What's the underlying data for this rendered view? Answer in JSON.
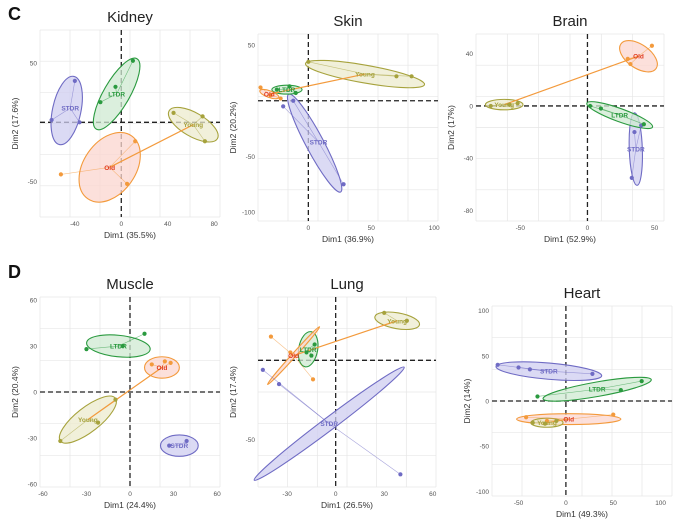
{
  "figure": {
    "row_labels": [
      "C",
      "D"
    ]
  },
  "colors": {
    "STDR": "#6f6bc4",
    "LTDR": "#2a9a3f",
    "Old": "#f39a3c",
    "Young": "#a6a23c",
    "Old_label": "#e03a1e",
    "ellipse_fill_STDR": "#cfcdf0",
    "ellipse_fill_LTDR": "#cfe9d2",
    "ellipse_fill_Old": "#fbd6cf",
    "ellipse_fill_Young": "#ecebcd",
    "grid": "#e6e6e6",
    "axis_text": "#555555"
  },
  "chart_data": [
    {
      "type": "scatter",
      "title": "Kidney",
      "xlabel": "Dim1 (35.5%)",
      "ylabel": "Dim2 (17.6%)",
      "xlim": [
        -70,
        85
      ],
      "ylim": [
        -80,
        78
      ],
      "xticks": [
        -40,
        0,
        40,
        80
      ],
      "xtick_labels": [
        "-40",
        "0",
        "40",
        "80"
      ],
      "yticks": [
        50,
        -50
      ],
      "ytick_labels": [
        "50",
        "-50"
      ],
      "groups": [
        {
          "name": "STDR",
          "label": "STDR",
          "points": [
            [
              -60,
              2
            ],
            [
              -40,
              35
            ],
            [
              -36,
              0
            ]
          ],
          "ellipse": {
            "cx": -47,
            "cy": 10,
            "rx": 30,
            "ry": 12,
            "angle": 78
          },
          "centroid": [
            -44,
            12
          ]
        },
        {
          "name": "LTDR",
          "label": "LTDR",
          "points": [
            [
              -18,
              17
            ],
            [
              -5,
              30
            ],
            [
              10,
              52
            ]
          ],
          "ellipse": {
            "cx": -4,
            "cy": 24,
            "rx": 35,
            "ry": 11,
            "angle": 60
          },
          "centroid": [
            -4,
            24
          ]
        },
        {
          "name": "Old",
          "label": "Old",
          "points": [
            [
              -52,
              -44
            ],
            [
              5,
              -52
            ],
            [
              12,
              -16
            ]
          ],
          "ellipse": {
            "cx": -10,
            "cy": -38,
            "rx": 33,
            "ry": 22,
            "angle": 55
          },
          "centroid": [
            -10,
            -38
          ]
        },
        {
          "name": "Young",
          "label": "Young",
          "points": [
            [
              45,
              8
            ],
            [
              70,
              5
            ],
            [
              72,
              -16
            ]
          ],
          "ellipse": {
            "cx": 62,
            "cy": -2,
            "rx": 24,
            "ry": 10,
            "angle": -30
          },
          "centroid": [
            62,
            -2
          ]
        }
      ]
    },
    {
      "type": "scatter",
      "title": "Skin",
      "xlabel": "Dim1 (36.9%)",
      "ylabel": "Dim2 (20.2%)",
      "xlim": [
        -40,
        103
      ],
      "ylim": [
        -108,
        60
      ],
      "xticks": [
        0,
        50,
        100
      ],
      "xtick_labels": [
        "0",
        "50",
        "100"
      ],
      "yticks": [
        50,
        -50,
        -100
      ],
      "ytick_labels": [
        "50",
        "-50",
        "-100"
      ],
      "groups": [
        {
          "name": "STDR",
          "label": "STDR",
          "points": [
            [
              -12,
              0
            ],
            [
              28,
              -75
            ],
            [
              -20,
              -5
            ]
          ],
          "ellipse": {
            "cx": 5,
            "cy": -38,
            "rx": 44,
            "ry": 8,
            "angle": -62
          },
          "centroid": [
            8,
            -37
          ]
        },
        {
          "name": "LTDR",
          "label": "LTDR",
          "points": [
            [
              -25,
              10
            ],
            [
              -15,
              13
            ],
            [
              -10,
              7
            ]
          ],
          "ellipse": {
            "cx": -17,
            "cy": 10,
            "rx": 12,
            "ry": 4,
            "angle": 0
          },
          "centroid": [
            -17,
            10
          ]
        },
        {
          "name": "Old",
          "label": "Old",
          "points": [
            [
              -38,
              12
            ],
            [
              -30,
              5
            ],
            [
              -22,
              2
            ]
          ],
          "ellipse": {
            "cx": -31,
            "cy": 6,
            "rx": 8,
            "ry": 3,
            "angle": -20
          },
          "centroid": [
            -31,
            6
          ]
        },
        {
          "name": "Young",
          "label": "Young",
          "points": [
            [
              0,
              35
            ],
            [
              70,
              22
            ],
            [
              82,
              22
            ]
          ],
          "ellipse": {
            "cx": 45,
            "cy": 24,
            "rx": 48,
            "ry": 8,
            "angle": -10
          },
          "centroid": [
            45,
            24
          ]
        }
      ]
    },
    {
      "type": "scatter",
      "title": "Brain",
      "xlabel": "Dim1 (52.9%)",
      "ylabel": "Dim2 (17%)",
      "xlim": [
        -83,
        57
      ],
      "ylim": [
        -88,
        55
      ],
      "xticks": [
        -50,
        0,
        50
      ],
      "xtick_labels": [
        "-50",
        "0",
        "50"
      ],
      "yticks": [
        40,
        0,
        -40,
        -80
      ],
      "ytick_labels": [
        "40",
        "0",
        "-40",
        "-80"
      ],
      "groups": [
        {
          "name": "STDR",
          "label": "STDR",
          "points": [
            [
              35,
              -20
            ],
            [
              40,
              -15
            ],
            [
              33,
              -55
            ]
          ],
          "ellipse": {
            "cx": 36,
            "cy": -33,
            "rx": 27,
            "ry": 5,
            "angle": -88
          },
          "centroid": [
            36,
            -33
          ]
        },
        {
          "name": "LTDR",
          "label": "LTDR",
          "points": [
            [
              2,
              0
            ],
            [
              10,
              -2
            ],
            [
              42,
              -14
            ]
          ],
          "ellipse": {
            "cx": 24,
            "cy": -7,
            "rx": 26,
            "ry": 5,
            "angle": -20
          },
          "centroid": [
            24,
            -7
          ]
        },
        {
          "name": "Old",
          "label": "Old",
          "points": [
            [
              30,
              36
            ],
            [
              32,
              32
            ],
            [
              48,
              46
            ]
          ],
          "ellipse": {
            "cx": 38,
            "cy": 38,
            "rx": 16,
            "ry": 9,
            "angle": -35
          },
          "centroid": [
            38,
            38
          ]
        },
        {
          "name": "Young",
          "label": "Young",
          "points": [
            [
              -72,
              0
            ],
            [
              -58,
              1
            ],
            [
              -52,
              2
            ]
          ],
          "ellipse": {
            "cx": -62,
            "cy": 1,
            "rx": 14,
            "ry": 4,
            "angle": 0
          },
          "centroid": [
            -62,
            1
          ]
        }
      ]
    },
    {
      "type": "scatter",
      "title": "Muscle",
      "xlabel": "Dim1 (24.4%)",
      "ylabel": "Dim2 (20.4%)",
      "xlim": [
        -62,
        62
      ],
      "ylim": [
        -62,
        62
      ],
      "xticks": [
        -60,
        -30,
        0,
        30,
        60
      ],
      "xtick_labels": [
        "-60",
        "-30",
        "0",
        "30",
        "60"
      ],
      "yticks": [
        60,
        30,
        0,
        -30,
        -60
      ],
      "ytick_labels": [
        "60",
        "30",
        "0",
        "-30",
        "-60"
      ],
      "groups": [
        {
          "name": "STDR",
          "label": "STDR",
          "points": [
            [
              27,
              -35
            ],
            [
              39,
              -32
            ]
          ],
          "ellipse": {
            "cx": 34,
            "cy": -35,
            "rx": 13,
            "ry": 7,
            "angle": 0
          },
          "centroid": [
            34,
            -35
          ]
        },
        {
          "name": "LTDR",
          "label": "LTDR",
          "points": [
            [
              -30,
              28
            ],
            [
              10,
              38
            ],
            [
              -5,
              30
            ]
          ],
          "ellipse": {
            "cx": -8,
            "cy": 30,
            "rx": 22,
            "ry": 7,
            "angle": -6
          },
          "centroid": [
            -8,
            30
          ]
        },
        {
          "name": "Old",
          "label": "Old",
          "points": [
            [
              15,
              18
            ],
            [
              24,
              20
            ],
            [
              28,
              19
            ]
          ],
          "ellipse": {
            "cx": 22,
            "cy": 16,
            "rx": 12,
            "ry": 7,
            "angle": 0
          },
          "centroid": [
            22,
            16
          ]
        },
        {
          "name": "Young",
          "label": "Young",
          "points": [
            [
              -48,
              -32
            ],
            [
              -10,
              -5
            ],
            [
              -22,
              -20
            ]
          ],
          "ellipse": {
            "cx": -29,
            "cy": -18,
            "rx": 24,
            "ry": 8,
            "angle": 38
          },
          "centroid": [
            -29,
            -18
          ]
        }
      ]
    },
    {
      "type": "scatter",
      "title": "Lung",
      "xlabel": "Dim1 (26.5%)",
      "ylabel": "Dim2 (17.4%)",
      "xlim": [
        -48,
        62
      ],
      "ylim": [
        -80,
        40
      ],
      "xticks": [
        -30,
        0,
        30,
        60
      ],
      "xtick_labels": [
        "-30",
        "0",
        "30",
        "60"
      ],
      "yticks": [
        -50
      ],
      "ytick_labels": [
        "-50"
      ],
      "groups": [
        {
          "name": "STDR",
          "label": "STDR",
          "points": [
            [
              -45,
              -6
            ],
            [
              -35,
              -15
            ],
            [
              40,
              -72
            ]
          ],
          "ellipse": {
            "cx": -4,
            "cy": -40,
            "rx": 58,
            "ry": 4,
            "angle": 37
          },
          "centroid": [
            -4,
            -40
          ]
        },
        {
          "name": "LTDR",
          "label": "LTDR",
          "points": [
            [
              -18,
              5
            ],
            [
              -15,
              3
            ],
            [
              -13,
              10
            ]
          ],
          "ellipse": {
            "cx": -17,
            "cy": 7,
            "rx": 11,
            "ry": 6,
            "angle": 80
          },
          "centroid": [
            -17,
            7
          ]
        },
        {
          "name": "Old",
          "label": "Old",
          "points": [
            [
              -40,
              15
            ],
            [
              -28,
              5
            ],
            [
              -14,
              -12
            ]
          ],
          "ellipse": {
            "cx": -26,
            "cy": 3,
            "rx": 24,
            "ry": 1.2,
            "angle": 48
          },
          "centroid": [
            -26,
            3
          ]
        },
        {
          "name": "Young",
          "label": "Young",
          "points": [
            [
              30,
              30
            ],
            [
              44,
              25
            ]
          ],
          "ellipse": {
            "cx": 38,
            "cy": 25,
            "rx": 14,
            "ry": 5,
            "angle": -10
          },
          "centroid": [
            38,
            25
          ]
        }
      ]
    },
    {
      "type": "scatter",
      "title": "Heart",
      "xlabel": "Dim1 (49.3%)",
      "ylabel": "Dim2 (14%)",
      "xlim": [
        -78,
        112
      ],
      "ylim": [
        -105,
        105
      ],
      "xticks": [
        -50,
        0,
        50,
        100
      ],
      "xtick_labels": [
        "-50",
        "0",
        "50",
        "100"
      ],
      "yticks": [
        100,
        50,
        0,
        -50,
        -100
      ],
      "ytick_labels": [
        "100",
        "50",
        "0",
        "-50",
        "-100"
      ],
      "groups": [
        {
          "name": "STDR",
          "label": "STDR",
          "points": [
            [
              -72,
              40
            ],
            [
              -50,
              37
            ],
            [
              -38,
              35
            ],
            [
              28,
              30
            ]
          ],
          "ellipse": {
            "cx": -18,
            "cy": 33,
            "rx": 56,
            "ry": 9,
            "angle": -5
          },
          "centroid": [
            -18,
            33
          ]
        },
        {
          "name": "LTDR",
          "label": "LTDR",
          "points": [
            [
              -30,
              5
            ],
            [
              58,
              12
            ],
            [
              80,
              22
            ]
          ],
          "ellipse": {
            "cx": 33,
            "cy": 13,
            "rx": 58,
            "ry": 8,
            "angle": 10
          },
          "centroid": [
            33,
            13
          ]
        },
        {
          "name": "Old",
          "label": "Old",
          "points": [
            [
              -42,
              -18
            ],
            [
              -20,
              -22
            ],
            [
              50,
              -15
            ]
          ],
          "ellipse": {
            "cx": 3,
            "cy": -20,
            "rx": 55,
            "ry": 6,
            "angle": 0
          },
          "centroid": [
            3,
            -20
          ]
        },
        {
          "name": "Young",
          "label": "Young",
          "points": [
            [
              -35,
              -24
            ],
            [
              -22,
              -25
            ],
            [
              -10,
              -22
            ]
          ],
          "ellipse": {
            "cx": -20,
            "cy": -24,
            "rx": 17,
            "ry": 5,
            "angle": 0
          },
          "centroid": [
            -20,
            -24
          ]
        }
      ]
    }
  ]
}
